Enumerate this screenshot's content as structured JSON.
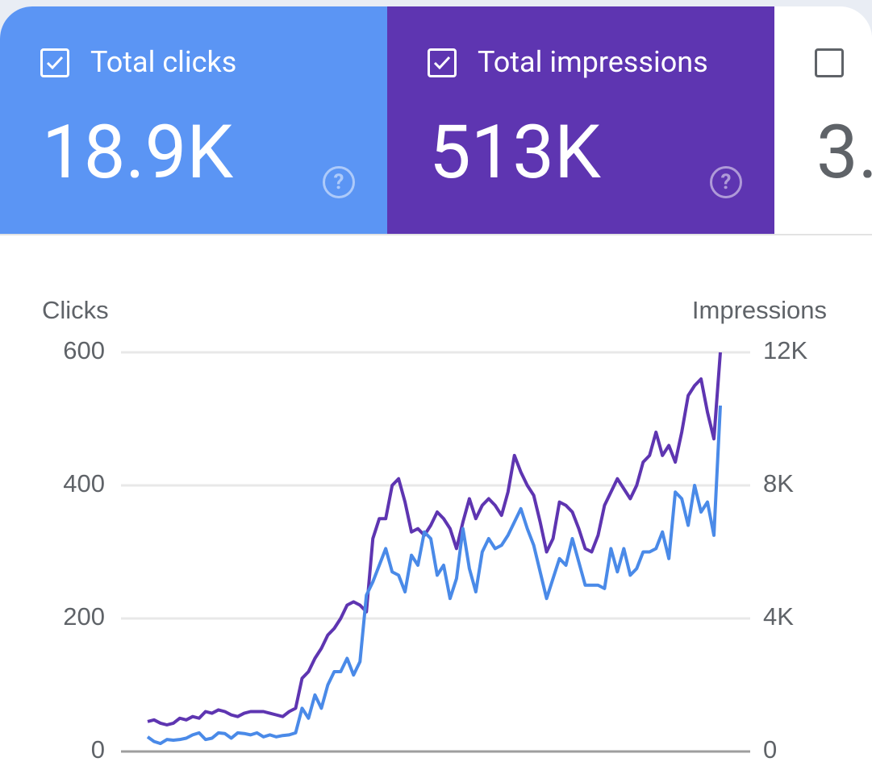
{
  "cards": [
    {
      "label": "Total clicks",
      "value": "18.9K"
    },
    {
      "label": "Total impressions",
      "value": "513K"
    },
    {
      "value": "3."
    }
  ],
  "chart_data": {
    "type": "line",
    "y_label": "Clicks",
    "y2_label": "Impressions",
    "categories": [
      null,
      null,
      null,
      null,
      null,
      null,
      null,
      null,
      null,
      null,
      null,
      null,
      null,
      null,
      null,
      null,
      null,
      null,
      null,
      null,
      null,
      null,
      null,
      null,
      null,
      null,
      null,
      null,
      null,
      null,
      null,
      null,
      null,
      null,
      null,
      null,
      null,
      null,
      null,
      null,
      null,
      null,
      null,
      null,
      null,
      null,
      null,
      null,
      null,
      null,
      null,
      null,
      null,
      null,
      null,
      null,
      null,
      null,
      null,
      null,
      null,
      null,
      null,
      null,
      null,
      null,
      null,
      null,
      null,
      null,
      null,
      null,
      null,
      null,
      null,
      null,
      null,
      null,
      null,
      null,
      null,
      null,
      null,
      null,
      null,
      null,
      null,
      null,
      null,
      null
    ],
    "series": [
      {
        "name": "Clicks",
        "color": "#4a8ae8",
        "values": [
          22,
          15,
          12,
          18,
          17,
          18,
          20,
          25,
          28,
          18,
          20,
          28,
          27,
          20,
          28,
          27,
          25,
          28,
          22,
          25,
          22,
          24,
          25,
          28,
          65,
          50,
          85,
          65,
          100,
          120,
          120,
          140,
          115,
          135,
          235,
          255,
          280,
          305,
          270,
          265,
          240,
          295,
          280,
          330,
          320,
          265,
          280,
          230,
          260,
          335,
          275,
          240,
          300,
          320,
          305,
          310,
          325,
          345,
          365,
          335,
          310,
          270,
          230,
          260,
          290,
          280,
          320,
          285,
          250,
          250,
          250,
          245,
          305,
          270,
          305,
          265,
          275,
          300,
          300,
          305,
          330,
          290,
          390,
          380,
          340,
          400,
          360,
          375,
          325,
          520
        ]
      },
      {
        "name": "Impressions",
        "color": "#5e35b1",
        "axis": "y2",
        "values": [
          900,
          950,
          850,
          800,
          850,
          1000,
          950,
          1050,
          1000,
          1200,
          1150,
          1250,
          1200,
          1100,
          1050,
          1150,
          1200,
          1200,
          1200,
          1150,
          1100,
          1050,
          1200,
          1300,
          2200,
          2400,
          2800,
          3100,
          3500,
          3700,
          4000,
          4400,
          4500,
          4400,
          4200,
          6400,
          7000,
          7000,
          8000,
          8200,
          7500,
          6600,
          6700,
          6500,
          6800,
          7200,
          7000,
          6700,
          6100,
          6900,
          7600,
          7000,
          7400,
          7600,
          7400,
          7100,
          7800,
          8900,
          8400,
          8000,
          7700,
          6900,
          6000,
          6400,
          7500,
          7400,
          7200,
          6700,
          6100,
          6000,
          6500,
          7400,
          7800,
          8200,
          7900,
          7600,
          8000,
          8700,
          8900,
          9600,
          8900,
          9200,
          8700,
          9600,
          10700,
          11000,
          11200,
          10200,
          9400,
          12000
        ]
      }
    ],
    "ylim": [
      0,
      600
    ],
    "yticks": [
      0,
      200,
      400,
      600
    ],
    "y2lim": [
      0,
      12000
    ],
    "y2ticks": [
      0,
      {
        "value": 4000,
        "label": "4K"
      },
      {
        "value": 8000,
        "label": "8K"
      },
      {
        "value": 12000,
        "label": "12K"
      }
    ],
    "grid": true
  }
}
